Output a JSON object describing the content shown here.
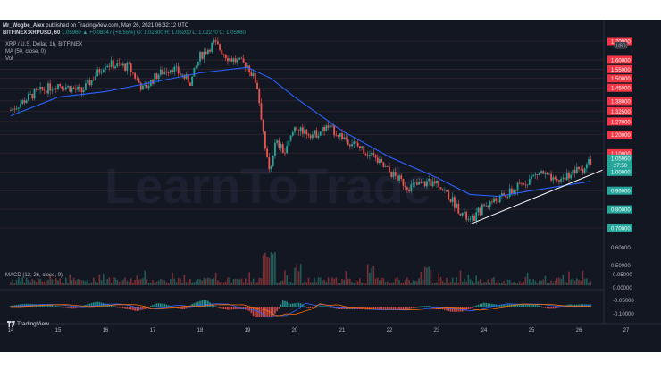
{
  "header": {
    "author": "Mr_Wogbe_Alex",
    "published": "published on TradingView.com, May 26, 2021 06:32:12 UTC"
  },
  "symbol_line": {
    "symbol": "BITFINEX:XRPUSD, 60",
    "ohlc": "1.05960 ▲ +0.08347 (+8.55%) O: 1.02600 H: 1.06200 L: 1.02270 C: 1.05960"
  },
  "legend": {
    "title": "XRP / U.S. Dollar, 1h, BITFINEX",
    "ma": "MA (50, close, 0)",
    "vol": "Vol",
    "macd": "MACD (12, 26, close, 9)"
  },
  "watermark": "LearnToTrade",
  "currency_badge": "USD",
  "price_tags": [
    {
      "label": "1.70000",
      "price": 1.7,
      "color": "#f23645"
    },
    {
      "label": "1.60000",
      "price": 1.6,
      "color": "#f23645"
    },
    {
      "label": "1.55000",
      "price": 1.55,
      "color": "#f23645"
    },
    {
      "label": "1.50000",
      "price": 1.5,
      "color": "#f23645"
    },
    {
      "label": "1.45000",
      "price": 1.45,
      "color": "#f23645"
    },
    {
      "label": "1.38000",
      "price": 1.38,
      "color": "#f23645"
    },
    {
      "label": "1.32500",
      "price": 1.325,
      "color": "#f23645"
    },
    {
      "label": "1.27000",
      "price": 1.27,
      "color": "#f23645"
    },
    {
      "label": "1.20000",
      "price": 1.2,
      "color": "#f23645"
    },
    {
      "label": "1.10000",
      "price": 1.1,
      "color": "#f23645"
    },
    {
      "label": "1.00000",
      "price": 1.0,
      "color": "#26a69a"
    },
    {
      "label": "0.90000",
      "price": 0.9,
      "color": "#26a69a"
    },
    {
      "label": "0.80000",
      "price": 0.8,
      "color": "#26a69a"
    },
    {
      "label": "0.70000",
      "price": 0.7,
      "color": "#26a69a"
    }
  ],
  "last_price": {
    "label": "1.05960",
    "countdown": "27:50",
    "price": 1.0596,
    "color": "#26a69a"
  },
  "vol_labels": [
    "0.60000",
    "0.50000"
  ],
  "macd_labels": [
    "0.05000",
    "0.00000",
    "-0.05000",
    "-0.10000"
  ],
  "x_labels": [
    "14",
    "15",
    "16",
    "17",
    "18",
    "19",
    "20",
    "21",
    "22",
    "23",
    "24",
    "25",
    "26",
    "27"
  ],
  "colors": {
    "up": "#26a69a",
    "down": "#ef5350",
    "ma": "#2962ff",
    "trendline": "#ffffff",
    "grid": "#2a2e39"
  },
  "footer": {
    "brand": "TradingView"
  },
  "chart_data": {
    "type": "candlestick",
    "title": "XRP / U.S. Dollar, 1h, BITFINEX",
    "x_axis": [
      "14",
      "15",
      "16",
      "17",
      "18",
      "19",
      "20",
      "21",
      "22",
      "23",
      "24",
      "25",
      "26",
      "27"
    ],
    "ylim": [
      0.68,
      1.72
    ],
    "price_path": [
      {
        "day": 14.0,
        "price": 1.33
      },
      {
        "day": 14.5,
        "price": 1.42
      },
      {
        "day": 15.0,
        "price": 1.47
      },
      {
        "day": 15.5,
        "price": 1.43
      },
      {
        "day": 16.0,
        "price": 1.58
      },
      {
        "day": 16.5,
        "price": 1.56
      },
      {
        "day": 16.8,
        "price": 1.44
      },
      {
        "day": 17.1,
        "price": 1.52
      },
      {
        "day": 17.4,
        "price": 1.56
      },
      {
        "day": 17.8,
        "price": 1.48
      },
      {
        "day": 18.0,
        "price": 1.62
      },
      {
        "day": 18.3,
        "price": 1.69
      },
      {
        "day": 18.6,
        "price": 1.61
      },
      {
        "day": 19.0,
        "price": 1.57
      },
      {
        "day": 19.2,
        "price": 1.47
      },
      {
        "day": 19.45,
        "price": 1.0
      },
      {
        "day": 19.6,
        "price": 1.16
      },
      {
        "day": 19.8,
        "price": 1.1
      },
      {
        "day": 20.0,
        "price": 1.24
      },
      {
        "day": 20.4,
        "price": 1.2
      },
      {
        "day": 20.7,
        "price": 1.24
      },
      {
        "day": 21.0,
        "price": 1.19
      },
      {
        "day": 21.5,
        "price": 1.11
      },
      {
        "day": 22.0,
        "price": 1.0
      },
      {
        "day": 22.4,
        "price": 0.92
      },
      {
        "day": 23.0,
        "price": 0.95
      },
      {
        "day": 23.5,
        "price": 0.79
      },
      {
        "day": 23.7,
        "price": 0.73
      },
      {
        "day": 24.0,
        "price": 0.82
      },
      {
        "day": 24.5,
        "price": 0.88
      },
      {
        "day": 25.0,
        "price": 0.97
      },
      {
        "day": 25.2,
        "price": 1.0
      },
      {
        "day": 25.5,
        "price": 0.94
      },
      {
        "day": 25.8,
        "price": 0.99
      },
      {
        "day": 26.1,
        "price": 1.02
      },
      {
        "day": 26.25,
        "price": 1.06
      }
    ],
    "ma50_path": [
      {
        "day": 14.0,
        "price": 1.3
      },
      {
        "day": 15.0,
        "price": 1.4
      },
      {
        "day": 16.0,
        "price": 1.43
      },
      {
        "day": 17.0,
        "price": 1.48
      },
      {
        "day": 18.0,
        "price": 1.53
      },
      {
        "day": 19.0,
        "price": 1.56
      },
      {
        "day": 19.5,
        "price": 1.5
      },
      {
        "day": 20.0,
        "price": 1.4
      },
      {
        "day": 21.0,
        "price": 1.22
      },
      {
        "day": 22.0,
        "price": 1.08
      },
      {
        "day": 23.0,
        "price": 0.97
      },
      {
        "day": 23.7,
        "price": 0.88
      },
      {
        "day": 24.3,
        "price": 0.87
      },
      {
        "day": 25.0,
        "price": 0.9
      },
      {
        "day": 26.25,
        "price": 0.95
      }
    ],
    "trendline": [
      {
        "day": 23.7,
        "price": 0.72
      },
      {
        "day": 26.5,
        "price": 1.01
      }
    ]
  }
}
